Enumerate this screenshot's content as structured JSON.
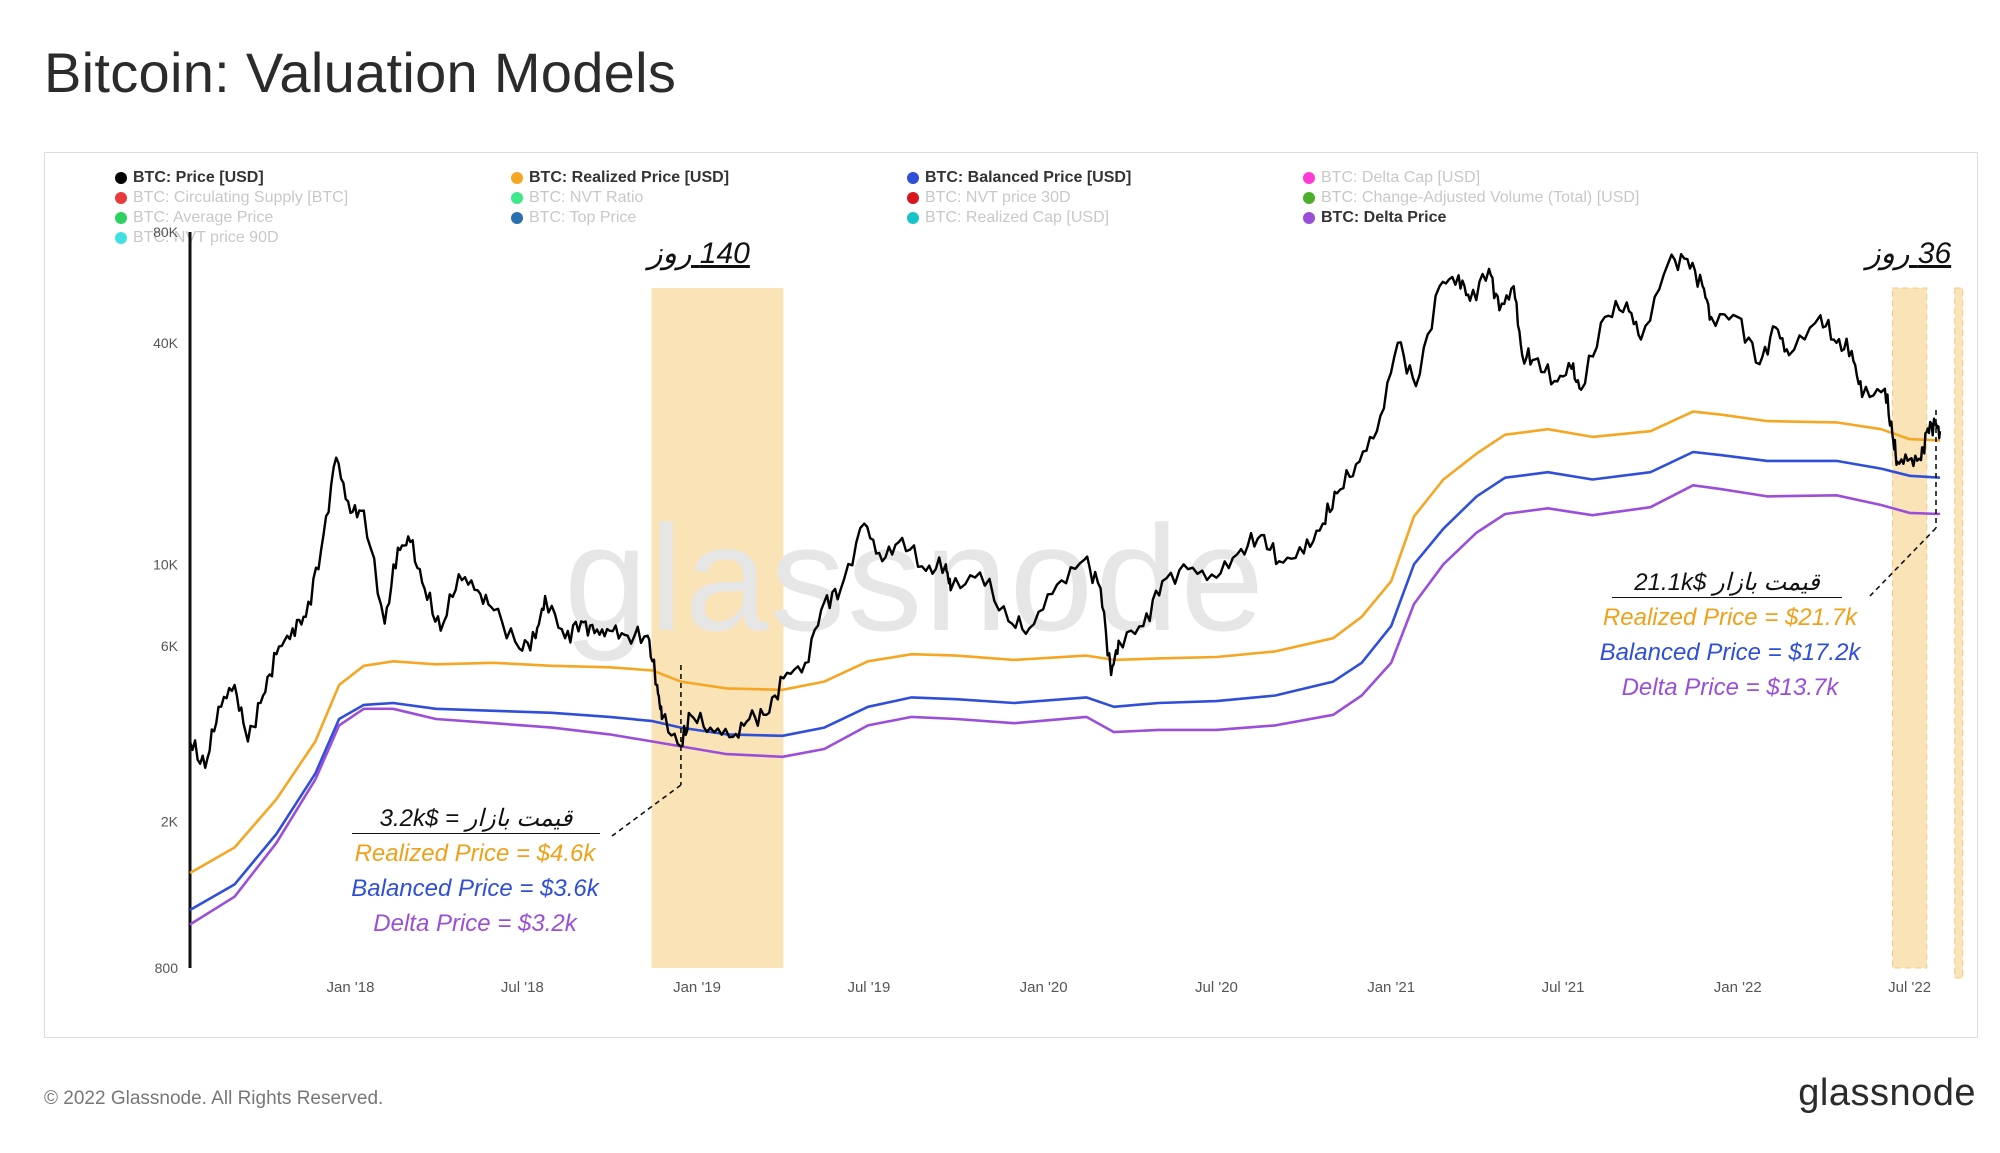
{
  "title": "Bitcoin: Valuation Models",
  "footer": "© 2022 Glassnode. All Rights Reserved.",
  "brand": "glassnode",
  "watermark": "glassnode",
  "legend": [
    {
      "label": "BTC: Price [USD]",
      "color": "#000000",
      "active": true
    },
    {
      "label": "BTC: Realized Price [USD]",
      "color": "#f5a623",
      "active": true
    },
    {
      "label": "BTC: Balanced Price [USD]",
      "color": "#2f4fd8",
      "active": true
    },
    {
      "label": "BTC: Delta Cap [USD]",
      "color": "#ff3bd6",
      "active": false
    },
    {
      "label": "BTC: Circulating Supply [BTC]",
      "color": "#e83b3b",
      "active": false
    },
    {
      "label": "BTC: NVT Ratio",
      "color": "#3be88a",
      "active": false
    },
    {
      "label": "BTC: NVT price 30D",
      "color": "#d9141f",
      "active": false
    },
    {
      "label": "BTC: Change-Adjusted Volume (Total) [USD]",
      "color": "#4caf2c",
      "active": false
    },
    {
      "label": "BTC: Average Price",
      "color": "#30d060",
      "active": false
    },
    {
      "label": "BTC: Top Price",
      "color": "#2a6fb0",
      "active": false
    },
    {
      "label": "BTC: Realized Cap [USD]",
      "color": "#18c3c8",
      "active": false
    },
    {
      "label": "BTC: Delta Price",
      "color": "#9b4fd8",
      "active": true
    },
    {
      "label": "BTC: NVT price 90D",
      "color": "#40e0e0",
      "active": false
    }
  ],
  "annotations": {
    "days_left": "140 روز",
    "days_right": "36 روز",
    "left_market": "قیمت بازار = $3.2k",
    "left_realized": "Realized Price = $4.6k",
    "left_balanced": "Balanced Price = $3.6k",
    "left_delta": "Delta Price = $3.2k",
    "right_market": "قیمت بازار $21.1k",
    "right_realized": "Realized Price = $21.7k",
    "right_balanced": "Balanced Price  = $17.2k",
    "right_delta": "Delta Price  = $13.7k"
  },
  "chart_data": {
    "type": "line",
    "y_scale": "log",
    "ylim": [
      800,
      80000
    ],
    "y_ticks": [
      "800",
      "2K",
      "6K",
      "10K",
      "40K",
      "80K"
    ],
    "y_tick_values": [
      800,
      2000,
      6000,
      10000,
      40000,
      80000
    ],
    "x_ticks": [
      "Jan '18",
      "Jul '18",
      "Jan '19",
      "Jul '19",
      "Jan '20",
      "Jul '20",
      "Jan '21",
      "Jul '21",
      "Jan '22",
      "Jul '22"
    ],
    "x_tick_dates": [
      "2018-01-01",
      "2018-07-01",
      "2019-01-01",
      "2019-07-01",
      "2020-01-01",
      "2020-07-01",
      "2021-01-01",
      "2021-07-01",
      "2022-01-01",
      "2022-07-01"
    ],
    "x_range": [
      "2017-07-16",
      "2022-08-02"
    ],
    "highlight_ranges": [
      [
        "2018-11-14",
        "2019-04-02"
      ],
      [
        "2022-06-13",
        "2022-07-19"
      ]
    ],
    "series": [
      {
        "name": "BTC: Price [USD]",
        "color": "#000000",
        "points": [
          [
            "2017-07-16",
            3300
          ],
          [
            "2017-08-01",
            2800
          ],
          [
            "2017-08-15",
            4100
          ],
          [
            "2017-09-01",
            4700
          ],
          [
            "2017-09-15",
            3300
          ],
          [
            "2017-10-01",
            4400
          ],
          [
            "2017-10-15",
            5700
          ],
          [
            "2017-11-01",
            6700
          ],
          [
            "2017-11-15",
            7200
          ],
          [
            "2017-12-01",
            10900
          ],
          [
            "2017-12-17",
            19500
          ],
          [
            "2018-01-01",
            13800
          ],
          [
            "2018-01-15",
            14000
          ],
          [
            "2018-02-06",
            6900
          ],
          [
            "2018-02-20",
            11100
          ],
          [
            "2018-03-05",
            11500
          ],
          [
            "2018-03-20",
            8600
          ],
          [
            "2018-04-06",
            6600
          ],
          [
            "2018-04-25",
            9400
          ],
          [
            "2018-05-15",
            8500
          ],
          [
            "2018-06-01",
            7500
          ],
          [
            "2018-06-28",
            5900
          ],
          [
            "2018-07-15",
            6300
          ],
          [
            "2018-07-25",
            8200
          ],
          [
            "2018-08-15",
            6300
          ],
          [
            "2018-09-01",
            7000
          ],
          [
            "2018-09-15",
            6500
          ],
          [
            "2018-10-01",
            6600
          ],
          [
            "2018-10-20",
            6400
          ],
          [
            "2018-11-10",
            6400
          ],
          [
            "2018-11-20",
            4700
          ],
          [
            "2018-11-25",
            3800
          ],
          [
            "2018-12-15",
            3200
          ],
          [
            "2018-12-25",
            3900
          ],
          [
            "2019-01-15",
            3600
          ],
          [
            "2019-02-08",
            3400
          ],
          [
            "2019-02-25",
            3800
          ],
          [
            "2019-03-15",
            3900
          ],
          [
            "2019-04-02",
            4900
          ],
          [
            "2019-04-25",
            5400
          ],
          [
            "2019-05-15",
            7900
          ],
          [
            "2019-06-01",
            8500
          ],
          [
            "2019-06-26",
            12900
          ],
          [
            "2019-07-15",
            10200
          ],
          [
            "2019-08-05",
            11800
          ],
          [
            "2019-08-30",
            9600
          ],
          [
            "2019-09-20",
            10000
          ],
          [
            "2019-09-25",
            8500
          ],
          [
            "2019-10-26",
            9500
          ],
          [
            "2019-11-25",
            7000
          ],
          [
            "2019-12-17",
            6700
          ],
          [
            "2020-01-15",
            8800
          ],
          [
            "2020-02-13",
            10300
          ],
          [
            "2020-03-01",
            8600
          ],
          [
            "2020-03-12",
            5000
          ],
          [
            "2020-03-20",
            6200
          ],
          [
            "2020-04-15",
            6800
          ],
          [
            "2020-05-05",
            9000
          ],
          [
            "2020-06-01",
            9700
          ],
          [
            "2020-07-01",
            9200
          ],
          [
            "2020-07-27",
            11000
          ],
          [
            "2020-08-17",
            12000
          ],
          [
            "2020-09-05",
            10200
          ],
          [
            "2020-10-01",
            10700
          ],
          [
            "2020-10-21",
            12900
          ],
          [
            "2020-11-05",
            15600
          ],
          [
            "2020-11-25",
            18700
          ],
          [
            "2020-12-17",
            23000
          ],
          [
            "2021-01-08",
            40000
          ],
          [
            "2021-01-27",
            30500
          ],
          [
            "2021-02-21",
            57000
          ],
          [
            "2021-03-13",
            61000
          ],
          [
            "2021-03-25",
            52000
          ],
          [
            "2021-04-14",
            63500
          ],
          [
            "2021-04-25",
            49000
          ],
          [
            "2021-05-10",
            57000
          ],
          [
            "2021-05-19",
            37000
          ],
          [
            "2021-06-01",
            36000
          ],
          [
            "2021-06-22",
            31500
          ],
          [
            "2021-07-10",
            34000
          ],
          [
            "2021-07-20",
            29800
          ],
          [
            "2021-08-14",
            47000
          ],
          [
            "2021-09-06",
            51500
          ],
          [
            "2021-09-21",
            40800
          ],
          [
            "2021-10-20",
            66000
          ],
          [
            "2021-11-09",
            67500
          ],
          [
            "2021-11-25",
            57000
          ],
          [
            "2021-12-04",
            47000
          ],
          [
            "2022-01-01",
            47000
          ],
          [
            "2022-01-24",
            35000
          ],
          [
            "2022-02-10",
            44000
          ],
          [
            "2022-02-24",
            37000
          ],
          [
            "2022-03-29",
            47500
          ],
          [
            "2022-04-15",
            40000
          ],
          [
            "2022-05-01",
            38000
          ],
          [
            "2022-05-12",
            28500
          ],
          [
            "2022-06-05",
            30000
          ],
          [
            "2022-06-13",
            22400
          ],
          [
            "2022-06-18",
            19000
          ],
          [
            "2022-07-01",
            19300
          ],
          [
            "2022-07-13",
            19200
          ],
          [
            "2022-07-20",
            23400
          ],
          [
            "2022-07-28",
            24000
          ],
          [
            "2022-08-02",
            23000
          ]
        ]
      },
      {
        "name": "BTC: Realized Price [USD]",
        "color": "#f5a623",
        "points": [
          [
            "2017-07-16",
            1450
          ],
          [
            "2017-09-01",
            1700
          ],
          [
            "2017-10-15",
            2300
          ],
          [
            "2017-11-25",
            3300
          ],
          [
            "2017-12-20",
            4700
          ],
          [
            "2018-01-15",
            5300
          ],
          [
            "2018-02-15",
            5450
          ],
          [
            "2018-04-01",
            5350
          ],
          [
            "2018-06-01",
            5400
          ],
          [
            "2018-08-01",
            5300
          ],
          [
            "2018-10-01",
            5250
          ],
          [
            "2018-11-15",
            5150
          ],
          [
            "2018-12-15",
            4800
          ],
          [
            "2019-02-01",
            4600
          ],
          [
            "2019-04-01",
            4560
          ],
          [
            "2019-05-15",
            4800
          ],
          [
            "2019-06-30",
            5450
          ],
          [
            "2019-08-15",
            5700
          ],
          [
            "2019-10-01",
            5650
          ],
          [
            "2019-12-01",
            5500
          ],
          [
            "2020-02-15",
            5650
          ],
          [
            "2020-03-15",
            5500
          ],
          [
            "2020-05-01",
            5550
          ],
          [
            "2020-07-01",
            5600
          ],
          [
            "2020-09-01",
            5800
          ],
          [
            "2020-11-01",
            6300
          ],
          [
            "2020-12-01",
            7200
          ],
          [
            "2021-01-01",
            9000
          ],
          [
            "2021-01-25",
            13500
          ],
          [
            "2021-02-25",
            17000
          ],
          [
            "2021-04-01",
            20000
          ],
          [
            "2021-05-01",
            22500
          ],
          [
            "2021-06-15",
            23300
          ],
          [
            "2021-08-01",
            22200
          ],
          [
            "2021-10-01",
            23000
          ],
          [
            "2021-11-15",
            26000
          ],
          [
            "2021-12-15",
            25500
          ],
          [
            "2022-02-01",
            24500
          ],
          [
            "2022-04-15",
            24300
          ],
          [
            "2022-06-01",
            23300
          ],
          [
            "2022-07-01",
            21900
          ],
          [
            "2022-08-02",
            21700
          ]
        ]
      },
      {
        "name": "BTC: Balanced Price [USD]",
        "color": "#2f4fd8",
        "points": [
          [
            "2017-07-16",
            1150
          ],
          [
            "2017-09-01",
            1350
          ],
          [
            "2017-10-15",
            1850
          ],
          [
            "2017-11-25",
            2700
          ],
          [
            "2017-12-20",
            3800
          ],
          [
            "2018-01-15",
            4150
          ],
          [
            "2018-02-15",
            4200
          ],
          [
            "2018-04-01",
            4050
          ],
          [
            "2018-06-01",
            4000
          ],
          [
            "2018-08-01",
            3950
          ],
          [
            "2018-10-01",
            3850
          ],
          [
            "2018-11-15",
            3750
          ],
          [
            "2018-12-15",
            3600
          ],
          [
            "2019-02-01",
            3450
          ],
          [
            "2019-04-01",
            3420
          ],
          [
            "2019-05-15",
            3600
          ],
          [
            "2019-06-30",
            4100
          ],
          [
            "2019-08-15",
            4350
          ],
          [
            "2019-10-01",
            4300
          ],
          [
            "2019-12-01",
            4200
          ],
          [
            "2020-02-15",
            4350
          ],
          [
            "2020-03-15",
            4100
          ],
          [
            "2020-05-01",
            4200
          ],
          [
            "2020-07-01",
            4250
          ],
          [
            "2020-09-01",
            4400
          ],
          [
            "2020-11-01",
            4800
          ],
          [
            "2020-12-01",
            5400
          ],
          [
            "2021-01-01",
            6800
          ],
          [
            "2021-01-25",
            10000
          ],
          [
            "2021-02-25",
            12500
          ],
          [
            "2021-04-01",
            15300
          ],
          [
            "2021-05-01",
            17200
          ],
          [
            "2021-06-15",
            17800
          ],
          [
            "2021-08-01",
            17000
          ],
          [
            "2021-10-01",
            17800
          ],
          [
            "2021-11-15",
            20200
          ],
          [
            "2021-12-15",
            19800
          ],
          [
            "2022-02-01",
            19100
          ],
          [
            "2022-04-15",
            19100
          ],
          [
            "2022-06-01",
            18200
          ],
          [
            "2022-07-01",
            17400
          ],
          [
            "2022-08-02",
            17200
          ]
        ]
      },
      {
        "name": "BTC: Delta Price",
        "color": "#9b4fd8",
        "points": [
          [
            "2017-07-16",
            1050
          ],
          [
            "2017-09-01",
            1250
          ],
          [
            "2017-10-15",
            1750
          ],
          [
            "2017-11-25",
            2600
          ],
          [
            "2017-12-20",
            3650
          ],
          [
            "2018-01-15",
            4050
          ],
          [
            "2018-02-15",
            4050
          ],
          [
            "2018-04-01",
            3800
          ],
          [
            "2018-06-01",
            3700
          ],
          [
            "2018-08-01",
            3600
          ],
          [
            "2018-10-01",
            3450
          ],
          [
            "2018-11-15",
            3300
          ],
          [
            "2018-12-15",
            3200
          ],
          [
            "2019-02-01",
            3050
          ],
          [
            "2019-04-01",
            3000
          ],
          [
            "2019-05-15",
            3150
          ],
          [
            "2019-06-30",
            3650
          ],
          [
            "2019-08-15",
            3850
          ],
          [
            "2019-10-01",
            3800
          ],
          [
            "2019-12-01",
            3700
          ],
          [
            "2020-02-15",
            3850
          ],
          [
            "2020-03-15",
            3500
          ],
          [
            "2020-05-01",
            3550
          ],
          [
            "2020-07-01",
            3550
          ],
          [
            "2020-09-01",
            3650
          ],
          [
            "2020-11-01",
            3900
          ],
          [
            "2020-12-01",
            4400
          ],
          [
            "2021-01-01",
            5400
          ],
          [
            "2021-01-25",
            7800
          ],
          [
            "2021-02-25",
            10000
          ],
          [
            "2021-04-01",
            12200
          ],
          [
            "2021-05-01",
            13700
          ],
          [
            "2021-06-15",
            14200
          ],
          [
            "2021-08-01",
            13600
          ],
          [
            "2021-10-01",
            14300
          ],
          [
            "2021-11-15",
            16400
          ],
          [
            "2021-12-15",
            16000
          ],
          [
            "2022-02-01",
            15300
          ],
          [
            "2022-04-15",
            15400
          ],
          [
            "2022-06-01",
            14500
          ],
          [
            "2022-07-01",
            13800
          ],
          [
            "2022-08-02",
            13700
          ]
        ]
      }
    ]
  }
}
